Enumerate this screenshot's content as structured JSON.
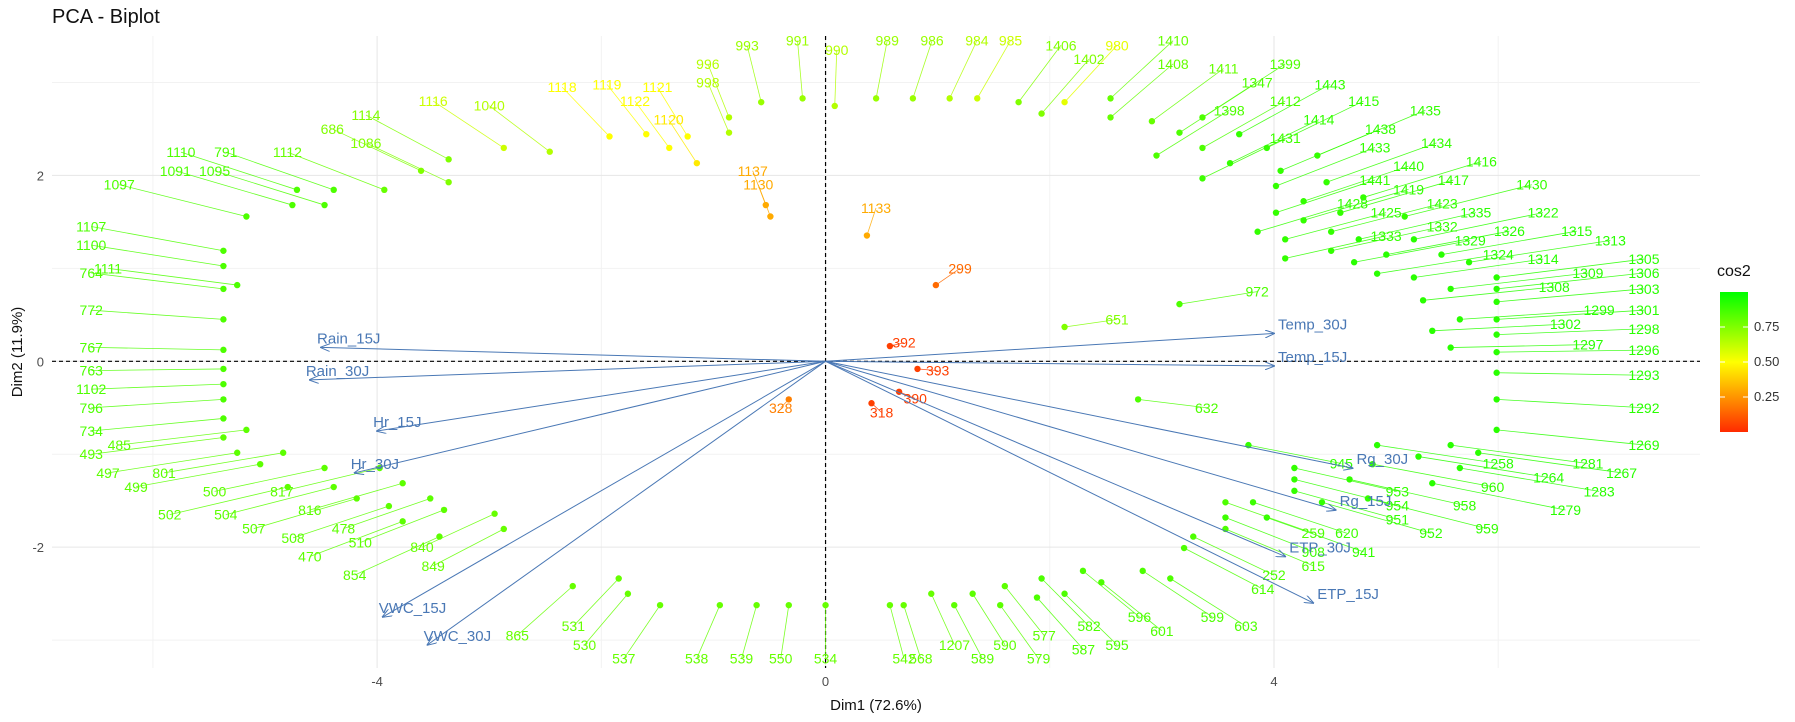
{
  "chart_data": {
    "type": "scatter",
    "title": "PCA - Biplot",
    "xlabel": "Dim1 (72.6%)",
    "ylabel": "Dim2 (11.9%)",
    "xlim": [
      -6.9,
      7.8
    ],
    "ylim": [
      -3.3,
      3.5
    ],
    "xticks": [
      -4,
      0,
      4
    ],
    "yticks": [
      -2,
      0,
      2
    ],
    "grid": true,
    "legend": {
      "title": "cos2",
      "position": "right",
      "ticks": [
        0.25,
        0.5,
        0.75
      ],
      "colors": {
        "low": "#ff2a00",
        "mid": "#ffff00",
        "high": "#00ff00"
      },
      "range": [
        0.0,
        1.0
      ]
    },
    "point_labels_visible": true,
    "sample_points": [
      {
        "label": "993",
        "x": -0.7,
        "y": 3.4,
        "cos2": 0.7
      },
      {
        "label": "991",
        "x": -0.25,
        "y": 3.45,
        "cos2": 0.7
      },
      {
        "label": "990",
        "x": 0.1,
        "y": 3.35,
        "cos2": 0.65
      },
      {
        "label": "989",
        "x": 0.55,
        "y": 3.45,
        "cos2": 0.7
      },
      {
        "label": "986",
        "x": 0.95,
        "y": 3.45,
        "cos2": 0.7
      },
      {
        "label": "984",
        "x": 1.35,
        "y": 3.45,
        "cos2": 0.65
      },
      {
        "label": "985",
        "x": 1.65,
        "y": 3.45,
        "cos2": 0.6
      },
      {
        "label": "1406",
        "x": 2.1,
        "y": 3.4,
        "cos2": 0.75
      },
      {
        "label": "980",
        "x": 2.6,
        "y": 3.4,
        "cos2": 0.55
      },
      {
        "label": "1410",
        "x": 3.1,
        "y": 3.45,
        "cos2": 0.8
      },
      {
        "label": "1402",
        "x": 2.35,
        "y": 3.25,
        "cos2": 0.75
      },
      {
        "label": "1408",
        "x": 3.1,
        "y": 3.2,
        "cos2": 0.8
      },
      {
        "label": "1411",
        "x": 3.55,
        "y": 3.15,
        "cos2": 0.8
      },
      {
        "label": "1399",
        "x": 4.1,
        "y": 3.2,
        "cos2": 0.85
      },
      {
        "label": "1347",
        "x": 3.85,
        "y": 3.0,
        "cos2": 0.85
      },
      {
        "label": "1443",
        "x": 4.5,
        "y": 2.98,
        "cos2": 0.9
      },
      {
        "label": "1412",
        "x": 4.1,
        "y": 2.8,
        "cos2": 0.85
      },
      {
        "label": "1415",
        "x": 4.8,
        "y": 2.8,
        "cos2": 0.9
      },
      {
        "label": "1398",
        "x": 3.6,
        "y": 2.7,
        "cos2": 0.85
      },
      {
        "label": "1414",
        "x": 4.4,
        "y": 2.6,
        "cos2": 0.9
      },
      {
        "label": "1435",
        "x": 5.35,
        "y": 2.7,
        "cos2": 0.9
      },
      {
        "label": "1438",
        "x": 4.95,
        "y": 2.5,
        "cos2": 0.9
      },
      {
        "label": "1431",
        "x": 4.1,
        "y": 2.4,
        "cos2": 0.88
      },
      {
        "label": "1433",
        "x": 4.9,
        "y": 2.3,
        "cos2": 0.9
      },
      {
        "label": "1434",
        "x": 5.45,
        "y": 2.35,
        "cos2": 0.9
      },
      {
        "label": "1440",
        "x": 5.2,
        "y": 2.1,
        "cos2": 0.9
      },
      {
        "label": "1416",
        "x": 5.85,
        "y": 2.15,
        "cos2": 0.9
      },
      {
        "label": "1441",
        "x": 4.9,
        "y": 1.95,
        "cos2": 0.9
      },
      {
        "label": "1417",
        "x": 5.6,
        "y": 1.95,
        "cos2": 0.9
      },
      {
        "label": "1430",
        "x": 6.3,
        "y": 1.9,
        "cos2": 0.9
      },
      {
        "label": "1419",
        "x": 5.2,
        "y": 1.85,
        "cos2": 0.9
      },
      {
        "label": "1428",
        "x": 4.7,
        "y": 1.7,
        "cos2": 0.9
      },
      {
        "label": "1423",
        "x": 5.5,
        "y": 1.7,
        "cos2": 0.9
      },
      {
        "label": "1335",
        "x": 5.8,
        "y": 1.6,
        "cos2": 0.92
      },
      {
        "label": "1322",
        "x": 6.4,
        "y": 1.6,
        "cos2": 0.92
      },
      {
        "label": "1425",
        "x": 5.0,
        "y": 1.6,
        "cos2": 0.9
      },
      {
        "label": "1332",
        "x": 5.5,
        "y": 1.45,
        "cos2": 0.9
      },
      {
        "label": "1326",
        "x": 6.1,
        "y": 1.4,
        "cos2": 0.92
      },
      {
        "label": "1315",
        "x": 6.7,
        "y": 1.4,
        "cos2": 0.92
      },
      {
        "label": "1333",
        "x": 5.0,
        "y": 1.35,
        "cos2": 0.9
      },
      {
        "label": "1329",
        "x": 5.75,
        "y": 1.3,
        "cos2": 0.92
      },
      {
        "label": "1313",
        "x": 7.0,
        "y": 1.3,
        "cos2": 0.92
      },
      {
        "label": "1324",
        "x": 6.0,
        "y": 1.15,
        "cos2": 0.92
      },
      {
        "label": "1305",
        "x": 7.3,
        "y": 1.1,
        "cos2": 0.92
      },
      {
        "label": "1314",
        "x": 6.4,
        "y": 1.1,
        "cos2": 0.92
      },
      {
        "label": "1309",
        "x": 6.8,
        "y": 0.95,
        "cos2": 0.92
      },
      {
        "label": "1306",
        "x": 7.3,
        "y": 0.95,
        "cos2": 0.92
      },
      {
        "label": "1308",
        "x": 6.5,
        "y": 0.8,
        "cos2": 0.92
      },
      {
        "label": "1303",
        "x": 7.3,
        "y": 0.78,
        "cos2": 0.92
      },
      {
        "label": "1299",
        "x": 6.9,
        "y": 0.55,
        "cos2": 0.92
      },
      {
        "label": "1301",
        "x": 7.3,
        "y": 0.55,
        "cos2": 0.92
      },
      {
        "label": "1302",
        "x": 6.6,
        "y": 0.4,
        "cos2": 0.92
      },
      {
        "label": "1298",
        "x": 7.3,
        "y": 0.35,
        "cos2": 0.92
      },
      {
        "label": "1297",
        "x": 6.8,
        "y": 0.18,
        "cos2": 0.92
      },
      {
        "label": "1296",
        "x": 7.3,
        "y": 0.12,
        "cos2": 0.92
      },
      {
        "label": "1293",
        "x": 7.3,
        "y": -0.15,
        "cos2": 0.92
      },
      {
        "label": "1292",
        "x": 7.3,
        "y": -0.5,
        "cos2": 0.92
      },
      {
        "label": "1269",
        "x": 7.3,
        "y": -0.9,
        "cos2": 0.92
      },
      {
        "label": "1267",
        "x": 7.1,
        "y": -1.2,
        "cos2": 0.92
      },
      {
        "label": "1281",
        "x": 6.8,
        "y": -1.1,
        "cos2": 0.92
      },
      {
        "label": "1264",
        "x": 6.45,
        "y": -1.25,
        "cos2": 0.92
      },
      {
        "label": "1258",
        "x": 6.0,
        "y": -1.1,
        "cos2": 0.92
      },
      {
        "label": "1283",
        "x": 6.9,
        "y": -1.4,
        "cos2": 0.92
      },
      {
        "label": "1279",
        "x": 6.6,
        "y": -1.6,
        "cos2": 0.92
      },
      {
        "label": "960",
        "x": 5.95,
        "y": -1.35,
        "cos2": 0.9
      },
      {
        "label": "959",
        "x": 5.9,
        "y": -1.8,
        "cos2": 0.9
      },
      {
        "label": "952",
        "x": 5.4,
        "y": -1.85,
        "cos2": 0.9
      },
      {
        "label": "951",
        "x": 5.1,
        "y": -1.7,
        "cos2": 0.9
      },
      {
        "label": "953",
        "x": 5.1,
        "y": -1.4,
        "cos2": 0.9
      },
      {
        "label": "954",
        "x": 5.1,
        "y": -1.55,
        "cos2": 0.9
      },
      {
        "label": "958",
        "x": 5.7,
        "y": -1.55,
        "cos2": 0.9
      },
      {
        "label": "941",
        "x": 4.8,
        "y": -2.05,
        "cos2": 0.9
      },
      {
        "label": "908",
        "x": 4.35,
        "y": -2.05,
        "cos2": 0.88
      },
      {
        "label": "615",
        "x": 4.35,
        "y": -2.2,
        "cos2": 0.85
      },
      {
        "label": "620",
        "x": 4.65,
        "y": -1.85,
        "cos2": 0.88
      },
      {
        "label": "259",
        "x": 4.35,
        "y": -1.85,
        "cos2": 0.85
      },
      {
        "label": "252",
        "x": 4.0,
        "y": -2.3,
        "cos2": 0.85
      },
      {
        "label": "614",
        "x": 3.9,
        "y": -2.45,
        "cos2": 0.85
      },
      {
        "label": "603",
        "x": 3.75,
        "y": -2.85,
        "cos2": 0.85
      },
      {
        "label": "599",
        "x": 3.45,
        "y": -2.75,
        "cos2": 0.85
      },
      {
        "label": "601",
        "x": 3.0,
        "y": -2.9,
        "cos2": 0.85
      },
      {
        "label": "595",
        "x": 2.6,
        "y": -3.05,
        "cos2": 0.85
      },
      {
        "label": "596",
        "x": 2.8,
        "y": -2.75,
        "cos2": 0.85
      },
      {
        "label": "587",
        "x": 2.3,
        "y": -3.1,
        "cos2": 0.85
      },
      {
        "label": "582",
        "x": 2.35,
        "y": -2.85,
        "cos2": 0.85
      },
      {
        "label": "577",
        "x": 1.95,
        "y": -2.95,
        "cos2": 0.82
      },
      {
        "label": "579",
        "x": 1.9,
        "y": -3.2,
        "cos2": 0.82
      },
      {
        "label": "590",
        "x": 1.6,
        "y": -3.05,
        "cos2": 0.82
      },
      {
        "label": "589",
        "x": 1.4,
        "y": -3.2,
        "cos2": 0.82
      },
      {
        "label": "1207",
        "x": 1.15,
        "y": -3.05,
        "cos2": 0.8
      },
      {
        "label": "568",
        "x": 0.85,
        "y": -3.2,
        "cos2": 0.8
      },
      {
        "label": "542",
        "x": 0.7,
        "y": -3.2,
        "cos2": 0.8
      },
      {
        "label": "534",
        "x": 0.0,
        "y": -3.2,
        "cos2": 0.8
      },
      {
        "label": "550",
        "x": -0.4,
        "y": -3.2,
        "cos2": 0.8
      },
      {
        "label": "539",
        "x": -0.75,
        "y": -3.2,
        "cos2": 0.8
      },
      {
        "label": "538",
        "x": -1.15,
        "y": -3.2,
        "cos2": 0.8
      },
      {
        "label": "537",
        "x": -1.8,
        "y": -3.2,
        "cos2": 0.8
      },
      {
        "label": "530",
        "x": -2.15,
        "y": -3.05,
        "cos2": 0.8
      },
      {
        "label": "531",
        "x": -2.25,
        "y": -2.85,
        "cos2": 0.8
      },
      {
        "label": "865",
        "x": -2.75,
        "y": -2.95,
        "cos2": 0.8
      },
      {
        "label": "854",
        "x": -4.2,
        "y": -2.3,
        "cos2": 0.82
      },
      {
        "label": "470",
        "x": -4.6,
        "y": -2.1,
        "cos2": 0.82
      },
      {
        "label": "508",
        "x": -4.75,
        "y": -1.9,
        "cos2": 0.82
      },
      {
        "label": "507",
        "x": -5.1,
        "y": -1.8,
        "cos2": 0.82
      },
      {
        "label": "504",
        "x": -5.35,
        "y": -1.65,
        "cos2": 0.82
      },
      {
        "label": "502",
        "x": -5.85,
        "y": -1.65,
        "cos2": 0.82
      },
      {
        "label": "499",
        "x": -6.15,
        "y": -1.35,
        "cos2": 0.82
      },
      {
        "label": "497",
        "x": -6.4,
        "y": -1.2,
        "cos2": 0.82
      },
      {
        "label": "493",
        "x": -6.55,
        "y": -1.0,
        "cos2": 0.82
      },
      {
        "label": "734",
        "x": -6.55,
        "y": -0.75,
        "cos2": 0.85
      },
      {
        "label": "796",
        "x": -6.55,
        "y": -0.5,
        "cos2": 0.85
      },
      {
        "label": "1102",
        "x": -6.55,
        "y": -0.3,
        "cos2": 0.85
      },
      {
        "label": "763",
        "x": -6.55,
        "y": -0.1,
        "cos2": 0.85
      },
      {
        "label": "767",
        "x": -6.55,
        "y": 0.15,
        "cos2": 0.85
      },
      {
        "label": "772",
        "x": -6.55,
        "y": 0.55,
        "cos2": 0.85
      },
      {
        "label": "764",
        "x": -6.55,
        "y": 0.95,
        "cos2": 0.85
      },
      {
        "label": "1100",
        "x": -6.55,
        "y": 1.25,
        "cos2": 0.85
      },
      {
        "label": "1107",
        "x": -6.55,
        "y": 1.45,
        "cos2": 0.85
      },
      {
        "label": "1097",
        "x": -6.3,
        "y": 1.9,
        "cos2": 0.85
      },
      {
        "label": "1110",
        "x": -5.75,
        "y": 2.25,
        "cos2": 0.85
      },
      {
        "label": "791",
        "x": -5.35,
        "y": 2.25,
        "cos2": 0.85
      },
      {
        "label": "1112",
        "x": -4.8,
        "y": 2.25,
        "cos2": 0.8
      },
      {
        "label": "1114",
        "x": -4.1,
        "y": 2.65,
        "cos2": 0.75
      },
      {
        "label": "686",
        "x": -4.4,
        "y": 2.5,
        "cos2": 0.75
      },
      {
        "label": "1086",
        "x": -4.1,
        "y": 2.35,
        "cos2": 0.75
      },
      {
        "label": "1116",
        "x": -3.5,
        "y": 2.8,
        "cos2": 0.6
      },
      {
        "label": "1040",
        "x": -3.0,
        "y": 2.75,
        "cos2": 0.65
      },
      {
        "label": "1118",
        "x": -2.35,
        "y": 2.95,
        "cos2": 0.5
      },
      {
        "label": "1119",
        "x": -1.95,
        "y": 2.98,
        "cos2": 0.5
      },
      {
        "label": "1121",
        "x": -1.5,
        "y": 2.95,
        "cos2": 0.5
      },
      {
        "label": "1122",
        "x": -1.7,
        "y": 2.8,
        "cos2": 0.5
      },
      {
        "label": "1120",
        "x": -1.4,
        "y": 2.6,
        "cos2": 0.45
      },
      {
        "label": "996",
        "x": -1.05,
        "y": 3.2,
        "cos2": 0.65
      },
      {
        "label": "998",
        "x": -1.05,
        "y": 3.0,
        "cos2": 0.65
      },
      {
        "label": "1130",
        "x": -0.6,
        "y": 1.9,
        "cos2": 0.3
      },
      {
        "label": "1137",
        "x": -0.65,
        "y": 2.05,
        "cos2": 0.3
      },
      {
        "label": "1133",
        "x": 0.45,
        "y": 1.65,
        "cos2": 0.3
      },
      {
        "label": "299",
        "x": 1.2,
        "y": 1.0,
        "cos2": 0.15
      },
      {
        "label": "390",
        "x": 0.8,
        "y": -0.4,
        "cos2": 0.05
      },
      {
        "label": "393",
        "x": 1.0,
        "y": -0.1,
        "cos2": 0.05
      },
      {
        "label": "318",
        "x": 0.5,
        "y": -0.55,
        "cos2": 0.05
      },
      {
        "label": "392",
        "x": 0.7,
        "y": 0.2,
        "cos2": 0.05
      },
      {
        "label": "328",
        "x": -0.4,
        "y": -0.5,
        "cos2": 0.2
      },
      {
        "label": "651",
        "x": 2.6,
        "y": 0.45,
        "cos2": 0.75
      },
      {
        "label": "972",
        "x": 3.85,
        "y": 0.75,
        "cos2": 0.85
      },
      {
        "label": "632",
        "x": 3.4,
        "y": -0.5,
        "cos2": 0.85
      },
      {
        "label": "945",
        "x": 4.6,
        "y": -1.1,
        "cos2": 0.9
      },
      {
        "label": "840",
        "x": -3.6,
        "y": -2.0,
        "cos2": 0.8
      },
      {
        "label": "849",
        "x": -3.5,
        "y": -2.2,
        "cos2": 0.8
      },
      {
        "label": "510",
        "x": -4.15,
        "y": -1.95,
        "cos2": 0.82
      },
      {
        "label": "478",
        "x": -4.3,
        "y": -1.8,
        "cos2": 0.82
      },
      {
        "label": "816",
        "x": -4.6,
        "y": -1.6,
        "cos2": 0.82
      },
      {
        "label": "817",
        "x": -4.85,
        "y": -1.4,
        "cos2": 0.82
      },
      {
        "label": "500",
        "x": -5.45,
        "y": -1.4,
        "cos2": 0.82
      },
      {
        "label": "801",
        "x": -5.9,
        "y": -1.2,
        "cos2": 0.82
      },
      {
        "label": "485",
        "x": -6.3,
        "y": -0.9,
        "cos2": 0.82
      },
      {
        "label": "1111",
        "x": -6.4,
        "y": 1.0,
        "cos2": 0.85
      },
      {
        "label": "1095",
        "x": -5.45,
        "y": 2.05,
        "cos2": 0.85
      },
      {
        "label": "1091",
        "x": -5.8,
        "y": 2.05,
        "cos2": 0.85
      }
    ],
    "variables": [
      {
        "name": "Temp_30J",
        "x": 4.0,
        "y": 0.3
      },
      {
        "name": "Temp_15J",
        "x": 4.0,
        "y": -0.05
      },
      {
        "name": "Rg_30J",
        "x": 4.7,
        "y": -1.15
      },
      {
        "name": "Rg_15J",
        "x": 4.55,
        "y": -1.6
      },
      {
        "name": "ETP_30J",
        "x": 4.1,
        "y": -2.1
      },
      {
        "name": "ETP_15J",
        "x": 4.35,
        "y": -2.6
      },
      {
        "name": "Rain_15J",
        "x": -4.5,
        "y": 0.15
      },
      {
        "name": "Rain_30J",
        "x": -4.6,
        "y": -0.2
      },
      {
        "name": "Hr_15J",
        "x": -4.0,
        "y": -0.75
      },
      {
        "name": "Hr_30J",
        "x": -4.2,
        "y": -1.2
      },
      {
        "name": "VWC_15J",
        "x": -3.95,
        "y": -2.75
      },
      {
        "name": "VWC_30J",
        "x": -3.55,
        "y": -3.05
      }
    ]
  }
}
